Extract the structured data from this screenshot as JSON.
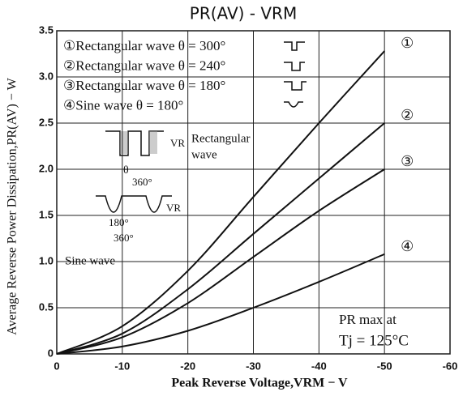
{
  "chart_data": {
    "type": "line",
    "title": "PR(AV) - VRM",
    "x_label": "Peak Reverse Voltage,VRM − V",
    "y_label": "Average Reverse Power Dissipation,PR(AV) − W",
    "x": [
      0,
      -10,
      -20,
      -30,
      -40,
      -50
    ],
    "series": [
      {
        "name": "①Rectangular wave θ = 300°",
        "color": "#111111",
        "values": [
          0,
          0.3,
          0.9,
          1.7,
          2.5,
          3.28
        ]
      },
      {
        "name": "②Rectangular wave θ = 240°",
        "color": "#111111",
        "values": [
          0,
          0.22,
          0.7,
          1.3,
          1.9,
          2.5
        ]
      },
      {
        "name": "③Rectangular wave θ = 180°",
        "color": "#111111",
        "values": [
          0,
          0.18,
          0.55,
          1.05,
          1.55,
          2.0
        ]
      },
      {
        "name": "④Sine wave θ = 180°",
        "color": "#111111",
        "values": [
          0,
          0.08,
          0.25,
          0.5,
          0.78,
          1.08
        ]
      }
    ],
    "curve_labels": [
      "①",
      "②",
      "③",
      "④"
    ],
    "annotations": [
      "Rectangular",
      "wave",
      "θ",
      "360°",
      "VR",
      "180°",
      "360°",
      "VR",
      "Sine wave",
      "PR max at",
      "Tj = 125°C"
    ],
    "xlim": [
      0,
      -60
    ],
    "xticks": [
      0,
      -10,
      -20,
      -30,
      -40,
      -50,
      -60
    ],
    "ylim": [
      0,
      3.5
    ],
    "yticks": [
      0,
      0.5,
      {
        "value": 1,
        "label": "1.0"
      },
      1.5,
      {
        "value": 2,
        "label": "2.0"
      },
      2.5,
      {
        "value": 3,
        "label": "3.0"
      },
      3.5
    ],
    "grid": true
  }
}
